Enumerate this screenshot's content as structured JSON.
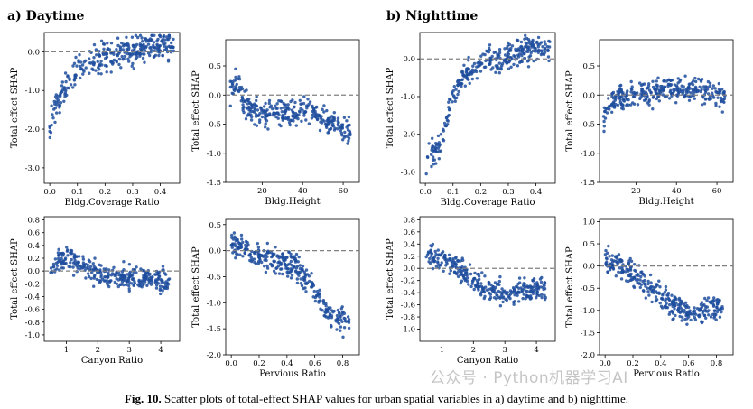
{
  "panel_titles": {
    "a": "a) Daytime",
    "b": "b) Nighttime"
  },
  "caption": {
    "label": "Fig. 10.",
    "text": "Scatter plots of total-effect SHAP values for urban spatial variables in a) daytime and b) nighttime."
  },
  "watermark": "公众号 · Python机器学习AI",
  "colors": {
    "point": "#1f4e9e",
    "reference_line": "#808080",
    "axis": "#000000"
  },
  "chart_data": [
    {
      "type": "scatter",
      "panel": "a",
      "period": "Daytime",
      "xlabel": "Bldg.Coverage Ratio",
      "ylabel": "Total effect SHAP",
      "xlim": [
        -0.02,
        0.47
      ],
      "ylim": [
        -3.4,
        0.5
      ],
      "xticks": [
        0.0,
        0.1,
        0.2,
        0.3,
        0.4
      ],
      "xtick_labels": [
        "0.0",
        "0.1",
        "0.2",
        "0.3",
        "0.4"
      ],
      "yticks": [
        -3.0,
        -2.0,
        -1.0,
        0.0
      ],
      "ytick_labels": [
        "-3.0",
        "-2.0",
        "-1.0",
        "0.0"
      ],
      "reference_y": 0,
      "trend": [
        [
          0.0,
          -1.9
        ],
        [
          0.03,
          -1.2
        ],
        [
          0.06,
          -0.8
        ],
        [
          0.1,
          -0.5
        ],
        [
          0.15,
          -0.25
        ],
        [
          0.2,
          -0.12
        ],
        [
          0.3,
          0.0
        ],
        [
          0.4,
          0.15
        ],
        [
          0.45,
          0.2
        ]
      ]
    },
    {
      "type": "scatter",
      "panel": "a",
      "period": "Daytime",
      "xlabel": "Bldg.Height",
      "ylabel": "Total effect SHAP",
      "xlim": [
        2,
        68
      ],
      "ylim": [
        -1.5,
        0.95
      ],
      "xticks": [
        20,
        40,
        60
      ],
      "xtick_labels": [
        "20",
        "40",
        "60"
      ],
      "yticks": [
        -1.5,
        -1.0,
        -0.5,
        0.0,
        0.5
      ],
      "ytick_labels": [
        "-1.5",
        "-1.0",
        "-0.5",
        "0.0",
        "0.5"
      ],
      "reference_y": 0,
      "trend": [
        [
          4,
          0.0
        ],
        [
          8,
          0.25
        ],
        [
          12,
          -0.2
        ],
        [
          20,
          -0.35
        ],
        [
          30,
          -0.3
        ],
        [
          40,
          -0.3
        ],
        [
          42,
          -0.25
        ],
        [
          64,
          -0.65
        ]
      ]
    },
    {
      "type": "scatter",
      "panel": "a",
      "period": "Daytime",
      "xlabel": "Canyon Ratio",
      "ylabel": "Total effect SHAP",
      "xlim": [
        0.3,
        4.6
      ],
      "ylim": [
        -1.1,
        0.85
      ],
      "xticks": [
        1,
        2,
        3,
        4
      ],
      "xtick_labels": [
        "1",
        "2",
        "3",
        "4"
      ],
      "yticks": [
        -1.0,
        -0.8,
        -0.6,
        -0.4,
        -0.2,
        0.0,
        0.2,
        0.4,
        0.6,
        0.8
      ],
      "ytick_labels": [
        "-1.0",
        "-0.8",
        "-0.6",
        "-0.4",
        "-0.2",
        "0.0",
        "0.2",
        "0.4",
        "0.6",
        "0.8"
      ],
      "reference_y": 0,
      "trend": [
        [
          0.5,
          0.05
        ],
        [
          1.0,
          0.25
        ],
        [
          1.5,
          0.05
        ],
        [
          2.0,
          -0.05
        ],
        [
          2.5,
          -0.08
        ],
        [
          3.0,
          -0.1
        ],
        [
          4.3,
          -0.15
        ]
      ]
    },
    {
      "type": "scatter",
      "panel": "a",
      "period": "Daytime",
      "xlabel": "Pervious Ratio",
      "ylabel": "Total effect SHAP",
      "xlim": [
        -0.04,
        0.92
      ],
      "ylim": [
        -2.0,
        0.6
      ],
      "xticks": [
        0.0,
        0.2,
        0.4,
        0.6,
        0.8
      ],
      "xtick_labels": [
        "0.0",
        "0.2",
        "0.4",
        "0.6",
        "0.8"
      ],
      "yticks": [
        -2.0,
        -1.5,
        -1.0,
        -0.5,
        0.0,
        0.5
      ],
      "ytick_labels": [
        "-2.0",
        "-1.5",
        "-1.0",
        "-0.5",
        "0.0",
        "0.5"
      ],
      "reference_y": 0,
      "trend": [
        [
          0.0,
          0.1
        ],
        [
          0.1,
          0.05
        ],
        [
          0.2,
          -0.1
        ],
        [
          0.3,
          -0.2
        ],
        [
          0.4,
          -0.25
        ],
        [
          0.5,
          -0.4
        ],
        [
          0.6,
          -0.75
        ],
        [
          0.7,
          -1.2
        ],
        [
          0.85,
          -1.4
        ]
      ]
    },
    {
      "type": "scatter",
      "panel": "b",
      "period": "Nighttime",
      "xlabel": "Bldg.Coverage Ratio",
      "ylabel": "Total effect SHAP",
      "xlim": [
        -0.02,
        0.47
      ],
      "ylim": [
        -3.3,
        0.7
      ],
      "xticks": [
        0.0,
        0.1,
        0.2,
        0.3,
        0.4
      ],
      "xtick_labels": [
        "0.0",
        "0.1",
        "0.2",
        "0.3",
        "0.4"
      ],
      "yticks": [
        -3.0,
        -2.0,
        -1.0,
        0.0
      ],
      "ytick_labels": [
        "-3.0",
        "-2.0",
        "-1.0",
        "0.0"
      ],
      "reference_y": 0,
      "trend": [
        [
          0.0,
          -2.8
        ],
        [
          0.05,
          -2.3
        ],
        [
          0.08,
          -1.6
        ],
        [
          0.1,
          -0.9
        ],
        [
          0.15,
          -0.4
        ],
        [
          0.2,
          -0.1
        ],
        [
          0.3,
          0.1
        ],
        [
          0.4,
          0.3
        ],
        [
          0.45,
          0.35
        ]
      ]
    },
    {
      "type": "scatter",
      "panel": "b",
      "period": "Nighttime",
      "xlabel": "Bldg.Height",
      "ylabel": "Total effect SHAP",
      "xlim": [
        2,
        68
      ],
      "ylim": [
        -1.5,
        0.95
      ],
      "xticks": [
        20,
        40,
        60
      ],
      "xtick_labels": [
        "20",
        "40",
        "60"
      ],
      "yticks": [
        -1.5,
        -1.0,
        -0.5,
        0.0,
        0.5
      ],
      "ytick_labels": [
        "-1.5",
        "-1.0",
        "-0.5",
        "0.0",
        "0.5"
      ],
      "reference_y": 0,
      "trend": [
        [
          4,
          -0.4
        ],
        [
          8,
          -0.1
        ],
        [
          15,
          0.0
        ],
        [
          25,
          0.0
        ],
        [
          35,
          0.1
        ],
        [
          42,
          0.1
        ],
        [
          64,
          0.0
        ]
      ]
    },
    {
      "type": "scatter",
      "panel": "b",
      "period": "Nighttime",
      "xlabel": "Canyon Ratio",
      "ylabel": "Total effect SHAP",
      "xlim": [
        0.3,
        4.6
      ],
      "ylim": [
        -1.2,
        0.85
      ],
      "xticks": [
        1,
        2,
        3,
        4
      ],
      "xtick_labels": [
        "1",
        "2",
        "3",
        "4"
      ],
      "yticks": [
        -1.0,
        -0.8,
        -0.6,
        -0.4,
        -0.2,
        0.0,
        0.2,
        0.4,
        0.6,
        0.8
      ],
      "ytick_labels": [
        "-1.0",
        "-0.8",
        "-0.6",
        "-0.4",
        "-0.2",
        "0.0",
        "0.2",
        "0.4",
        "0.6",
        "0.8"
      ],
      "reference_y": 0,
      "trend": [
        [
          0.5,
          0.2
        ],
        [
          1.0,
          0.15
        ],
        [
          1.5,
          0.0
        ],
        [
          2.0,
          -0.2
        ],
        [
          2.5,
          -0.35
        ],
        [
          3.0,
          -0.4
        ],
        [
          4.3,
          -0.3
        ]
      ]
    },
    {
      "type": "scatter",
      "panel": "b",
      "period": "Nighttime",
      "xlabel": "Pervious Ratio",
      "ylabel": "Total effect SHAP",
      "xlim": [
        -0.04,
        0.92
      ],
      "ylim": [
        -2.0,
        1.05
      ],
      "xticks": [
        0.0,
        0.2,
        0.4,
        0.6,
        0.8
      ],
      "xtick_labels": [
        "0.0",
        "0.2",
        "0.4",
        "0.6",
        "0.8"
      ],
      "yticks": [
        -2.0,
        -1.5,
        -1.0,
        -0.5,
        0.0,
        0.5,
        1.0
      ],
      "ytick_labels": [
        "-2.0",
        "-1.5",
        "-1.0",
        "-0.5",
        "0.0",
        "0.5",
        "1.0"
      ],
      "reference_y": 0,
      "trend": [
        [
          0.0,
          0.2
        ],
        [
          0.1,
          0.0
        ],
        [
          0.2,
          -0.2
        ],
        [
          0.3,
          -0.4
        ],
        [
          0.4,
          -0.7
        ],
        [
          0.5,
          -0.9
        ],
        [
          0.6,
          -1.1
        ],
        [
          0.85,
          -0.9
        ]
      ]
    }
  ]
}
